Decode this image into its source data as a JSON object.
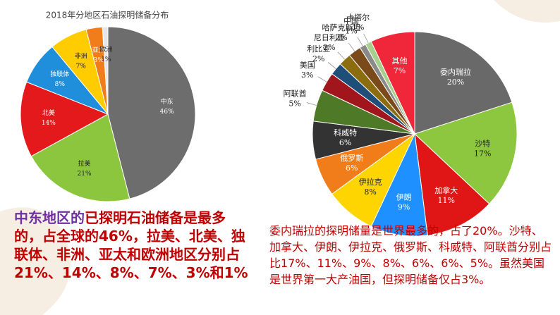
{
  "chart_data": [
    {
      "type": "pie",
      "title": "2018年分地区石油探明储备分布",
      "categories": [
        "中东",
        "拉美",
        "北美",
        "独联体",
        "非洲",
        "亚太",
        "欧洲"
      ],
      "values": [
        46,
        21,
        14,
        8,
        7,
        3,
        1
      ],
      "value_labels": [
        "46%",
        "21%",
        "14%",
        "8%",
        "7%",
        "3%",
        "1%"
      ],
      "colors": [
        "#6d6d6d",
        "#8cc63f",
        "#e3191c",
        "#1f8fdc",
        "#ffcc00",
        "#f07d1a",
        "#e6e6e6"
      ]
    },
    {
      "type": "pie",
      "categories": [
        "委内瑞拉",
        "沙特",
        "加拿大",
        "伊朗",
        "伊拉克",
        "俄罗斯",
        "科威特",
        "阿联酋",
        "美国",
        "利比亚",
        "尼日利亚",
        "哈萨克斯坦",
        "中国",
        "卡塔尔",
        "其他"
      ],
      "values": [
        20,
        17,
        11,
        9,
        8,
        6,
        6,
        5,
        3,
        2,
        2,
        2,
        1,
        1,
        7
      ],
      "value_labels": [
        "20%",
        "17%",
        "11%",
        "9%",
        "8%",
        "6%",
        "6%",
        "5%",
        "3%",
        "2%",
        "2%",
        "2%",
        "1%",
        "1%",
        "7%"
      ],
      "colors": [
        "#696969",
        "#8dc63f",
        "#e01515",
        "#1e90ff",
        "#ffd500",
        "#f07d1a",
        "#333333",
        "#4e7a27",
        "#a0161c",
        "#1f4e79",
        "#8b6d10",
        "#7a4a1a",
        "#8a8a8a",
        "#a8d08d",
        "#f0263a"
      ]
    }
  ],
  "captions": {
    "left": [
      "中东地区的",
      "已探明石油储备是最多的，占全球的46%，拉美、北美、独联体、非洲、亚太和欧洲地区分别占21%、14%、8%、7%、3%和1%"
    ],
    "right": "委内瑞拉的探明储量是世界最多的，占了20%。沙特、加拿大、伊朗、伊拉克、俄罗斯、科威特、阿联酋分别占比17%、11%、9%、8%、6%、6%、5%。虽然美国是世界第一大产油国，但探明储备仅占3%。"
  }
}
